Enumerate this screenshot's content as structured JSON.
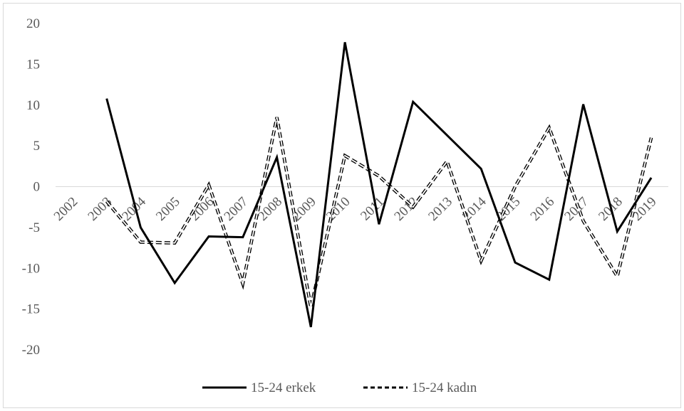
{
  "chart_data": {
    "type": "line",
    "title": "",
    "xlabel": "",
    "ylabel": "",
    "categories": [
      "2002",
      "2003",
      "2004",
      "2005",
      "2006",
      "2007",
      "2008",
      "2009",
      "2010",
      "2011",
      "2012",
      "2013",
      "2014",
      "2015",
      "2016",
      "2017",
      "2018",
      "2019"
    ],
    "ylim": [
      -20,
      20
    ],
    "yticks": [
      20,
      15,
      10,
      5,
      0,
      -5,
      -10,
      -15,
      -20
    ],
    "grid": false,
    "legend_position": "bottom",
    "series": [
      {
        "name": "15-24 erkek",
        "style": "solid",
        "color": "#000000",
        "values": [
          null,
          10.8,
          -5.0,
          -11.8,
          -6.1,
          -6.2,
          3.6,
          -17.2,
          17.7,
          -4.6,
          10.4,
          6.3,
          2.2,
          -9.3,
          -11.4,
          10.1,
          -5.5,
          1.1
        ]
      },
      {
        "name": "15-24 kadın",
        "style": "dashed",
        "color": "#000000",
        "values": [
          null,
          -1.8,
          -6.8,
          -6.9,
          0.2,
          -11.9,
          8.5,
          -14.8,
          3.8,
          1.3,
          -2.5,
          3.1,
          -9.1,
          0.0,
          7.2,
          -4.2,
          -11.0,
          6.0
        ]
      }
    ]
  }
}
